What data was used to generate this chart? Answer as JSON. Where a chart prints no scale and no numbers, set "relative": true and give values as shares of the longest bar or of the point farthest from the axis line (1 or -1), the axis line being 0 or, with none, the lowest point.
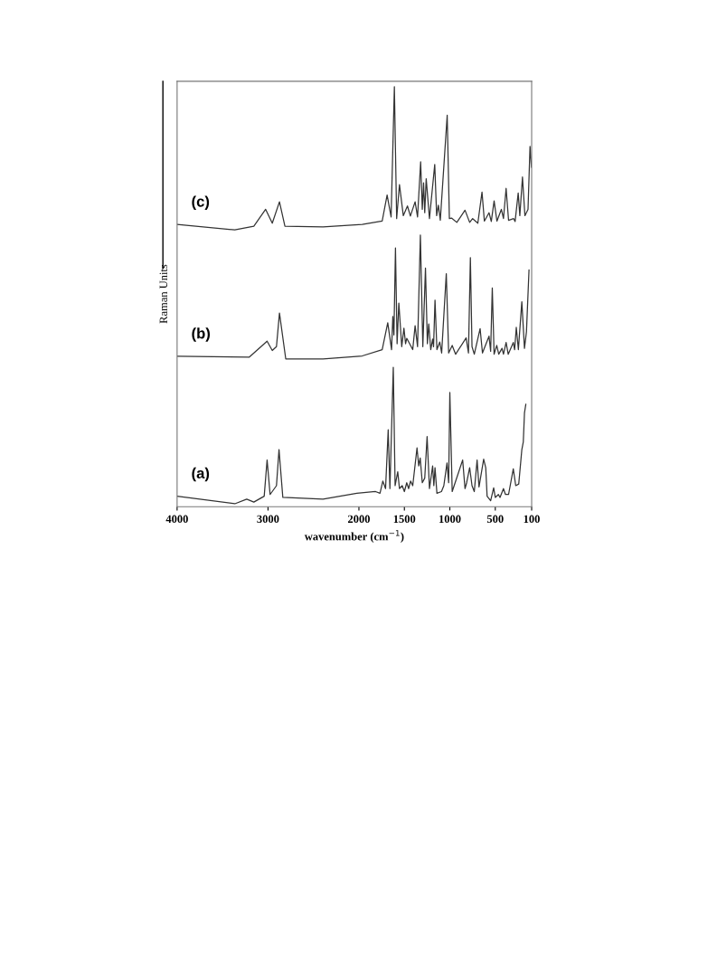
{
  "chart_data": {
    "type": "line",
    "relative": true,
    "xlabel": "wavenumber (cm$^{−1}$)",
    "ylabel": "Raman Units",
    "xlim": [
      4000,
      100
    ],
    "xticks": [
      4000,
      3000,
      2000,
      1500,
      1000,
      500,
      100
    ],
    "tick_labels": "x",
    "series": [
      {
        "name": "(c)",
        "color": "#333333",
        "x": [
          4000,
          3365,
          3156,
          3026,
          2953,
          2874,
          2814,
          2395,
          1963,
          1744,
          1690,
          1646,
          1610,
          1585,
          1554,
          1512,
          1466,
          1434,
          1382,
          1355,
          1321,
          1303,
          1289,
          1276,
          1260,
          1224,
          1166,
          1145,
          1126,
          1105,
          1029,
          1005,
          979,
          923,
          833,
          782,
          749,
          718,
          692,
          646,
          620,
          569,
          544,
          513,
          482,
          433,
          410,
          381,
          354,
          298,
          282,
          248,
          230,
          201,
          174,
          140,
          118,
          102
        ],
        "values": [
          0.672,
          0.659,
          0.668,
          0.708,
          0.675,
          0.726,
          0.668,
          0.666,
          0.672,
          0.68,
          0.742,
          0.69,
          1.0,
          0.686,
          0.767,
          0.693,
          0.716,
          0.692,
          0.726,
          0.69,
          0.821,
          0.708,
          0.771,
          0.7,
          0.781,
          0.686,
          0.815,
          0.693,
          0.718,
          0.682,
          0.932,
          0.686,
          0.687,
          0.677,
          0.706,
          0.677,
          0.686,
          0.68,
          0.675,
          0.749,
          0.68,
          0.7,
          0.679,
          0.728,
          0.68,
          0.708,
          0.686,
          0.758,
          0.682,
          0.686,
          0.679,
          0.747,
          0.693,
          0.785,
          0.693,
          0.708,
          0.858,
          0.808
        ]
      },
      {
        "name": "(b)",
        "color": "#333333",
        "x": [
          4000,
          3208,
          3010,
          2953,
          2907,
          2874,
          2805,
          2395,
          1963,
          1744,
          1683,
          1641,
          1627,
          1615,
          1598,
          1580,
          1561,
          1529,
          1505,
          1487,
          1474,
          1408,
          1382,
          1355,
          1324,
          1297,
          1268,
          1247,
          1232,
          1210,
          1189,
          1179,
          1163,
          1142,
          1111,
          1090,
          1039,
          1013,
          974,
          936,
          821,
          795,
          774,
          756,
          731,
          667,
          641,
          569,
          551,
          533,
          513,
          484,
          462,
          426,
          410,
          381,
          358,
          302,
          287,
          269,
          246,
          208,
          179,
          157,
          129
        ],
        "values": [
          0.358,
          0.356,
          0.394,
          0.372,
          0.381,
          0.461,
          0.352,
          0.352,
          0.359,
          0.374,
          0.438,
          0.374,
          0.453,
          0.409,
          0.616,
          0.388,
          0.485,
          0.381,
          0.425,
          0.388,
          0.401,
          0.374,
          0.431,
          0.381,
          0.647,
          0.381,
          0.568,
          0.388,
          0.435,
          0.374,
          0.399,
          0.381,
          0.492,
          0.374,
          0.392,
          0.366,
          0.555,
          0.366,
          0.384,
          0.363,
          0.402,
          0.366,
          0.593,
          0.381,
          0.363,
          0.424,
          0.366,
          0.406,
          0.37,
          0.521,
          0.363,
          0.384,
          0.363,
          0.377,
          0.363,
          0.391,
          0.363,
          0.391,
          0.374,
          0.427,
          0.374,
          0.488,
          0.377,
          0.417,
          0.564
        ]
      },
      {
        "name": "(a)",
        "color": "#333333",
        "x": [
          4000,
          3365,
          3234,
          3156,
          3042,
          3010,
          2977,
          2907,
          2879,
          2837,
          2395,
          2023,
          1817,
          1768,
          1737,
          1707,
          1678,
          1659,
          1622,
          1602,
          1573,
          1554,
          1524,
          1500,
          1474,
          1453,
          1432,
          1408,
          1361,
          1342,
          1326,
          1303,
          1276,
          1250,
          1224,
          1189,
          1176,
          1163,
          1142,
          1092,
          1066,
          1031,
          1013,
          1000,
          974,
          859,
          833,
          815,
          782,
          756,
          731,
          700,
          679,
          628,
          605,
          590,
          551,
          518,
          500,
          466,
          448,
          410,
          388,
          354,
          302,
          275,
          242,
          208,
          192,
          179,
          164
        ],
        "values": [
          0.025,
          0.007,
          0.018,
          0.011,
          0.025,
          0.111,
          0.029,
          0.05,
          0.136,
          0.022,
          0.018,
          0.032,
          0.036,
          0.032,
          0.061,
          0.043,
          0.183,
          0.043,
          0.332,
          0.05,
          0.083,
          0.043,
          0.05,
          0.036,
          0.057,
          0.043,
          0.061,
          0.05,
          0.14,
          0.097,
          0.116,
          0.057,
          0.068,
          0.167,
          0.043,
          0.097,
          0.05,
          0.093,
          0.032,
          0.036,
          0.05,
          0.104,
          0.057,
          0.272,
          0.036,
          0.111,
          0.043,
          0.057,
          0.093,
          0.05,
          0.036,
          0.111,
          0.047,
          0.113,
          0.093,
          0.025,
          0.014,
          0.045,
          0.022,
          0.029,
          0.022,
          0.043,
          0.029,
          0.029,
          0.09,
          0.05,
          0.054,
          0.136,
          0.154,
          0.223,
          0.244
        ]
      }
    ]
  }
}
